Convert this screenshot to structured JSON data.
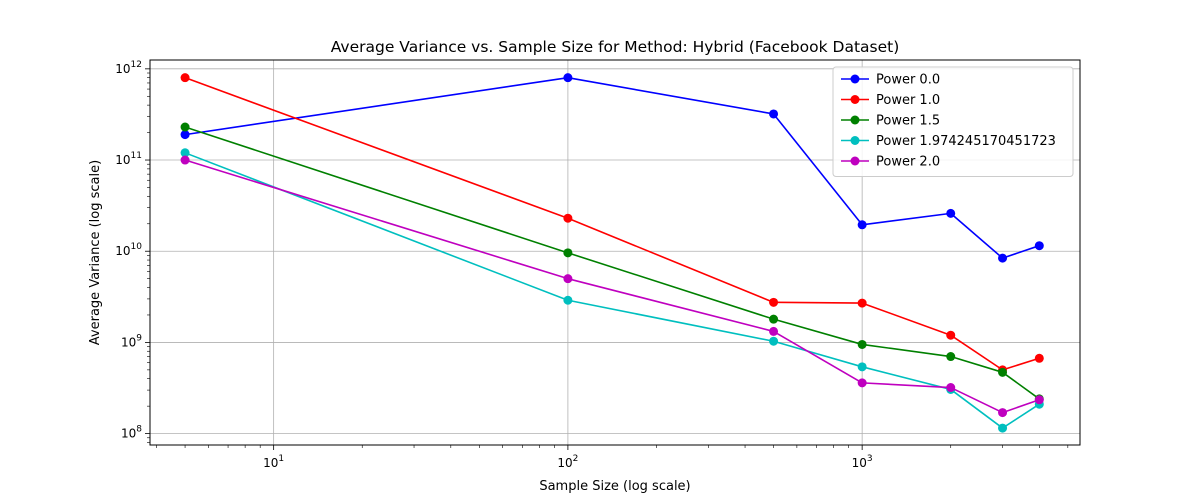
{
  "chart_data": {
    "type": "line",
    "title": "Average Variance vs. Sample Size for Method: Hybrid (Facebook Dataset)",
    "xlabel": "Sample Size (log scale)",
    "ylabel": "Average Variance (log scale)",
    "xscale": "log",
    "yscale": "log",
    "xlim": [
      3.8,
      5500
    ],
    "ylim": [
      75000000,
      1250000000000
    ],
    "x_ticks": [
      {
        "base": "10",
        "exp": "1",
        "value": 10
      },
      {
        "base": "10",
        "exp": "2",
        "value": 100
      },
      {
        "base": "10",
        "exp": "3",
        "value": 1000
      }
    ],
    "y_ticks": [
      {
        "base": "10",
        "exp": "8",
        "value": 100000000
      },
      {
        "base": "10",
        "exp": "9",
        "value": 1000000000
      },
      {
        "base": "10",
        "exp": "10",
        "value": 10000000000
      },
      {
        "base": "10",
        "exp": "11",
        "value": 100000000000
      },
      {
        "base": "10",
        "exp": "12",
        "value": 1000000000000
      }
    ],
    "grid": true,
    "legend_position": "top-right",
    "x": [
      5,
      100,
      500,
      1000,
      2000,
      3000,
      4000
    ],
    "series": [
      {
        "name": "Power 0.0",
        "color": "#0000ff",
        "values": [
          190000000000,
          800000000000,
          320000000000,
          19500000000,
          26000000000,
          8400000000,
          11500000000
        ]
      },
      {
        "name": "Power 1.0",
        "color": "#ff0000",
        "values": [
          800000000000,
          23000000000,
          2750000000,
          2700000000,
          1200000000,
          500000000,
          670000000
        ]
      },
      {
        "name": "Power 1.5",
        "color": "#008000",
        "values": [
          230000000000,
          9600000000,
          1800000000,
          950000000,
          700000000,
          470000000,
          240000000
        ]
      },
      {
        "name": "Power 1.974245170451723",
        "color": "#00bfbf",
        "values": [
          120000000000,
          2900000000,
          1030000000,
          540000000,
          305000000,
          115000000,
          210000000
        ]
      },
      {
        "name": "Power 2.0",
        "color": "#bf00bf",
        "values": [
          100000000000,
          5000000000,
          1320000000,
          360000000,
          320000000,
          170000000,
          235000000
        ]
      }
    ]
  }
}
